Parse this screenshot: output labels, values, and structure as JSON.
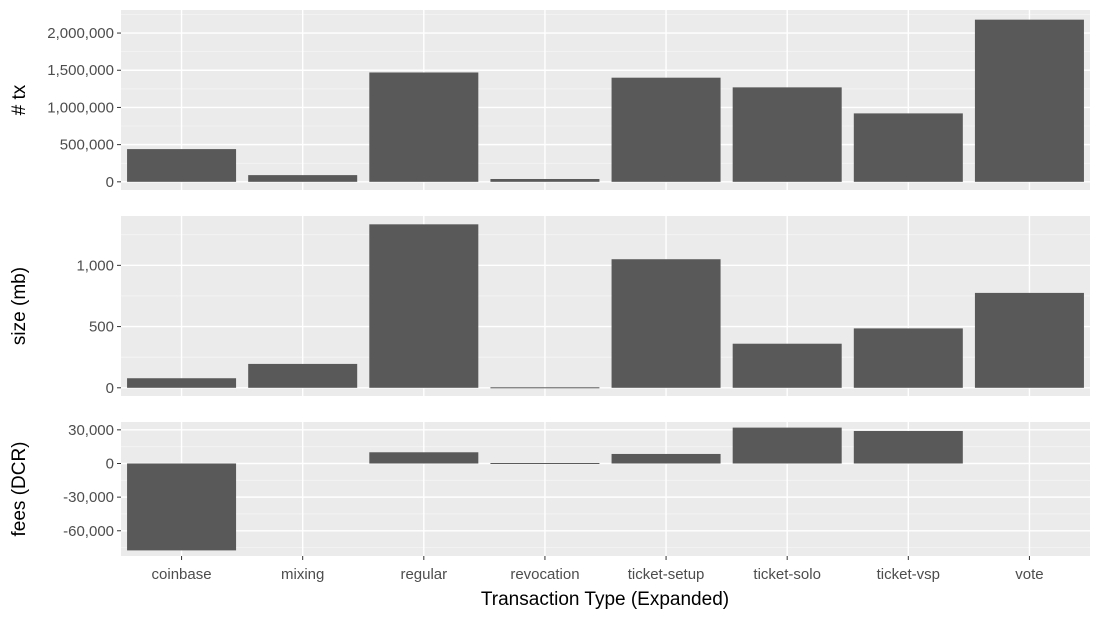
{
  "chart_data": {
    "type": "bar",
    "categories": [
      "coinbase",
      "mixing",
      "regular",
      "revocation",
      "ticket-setup",
      "ticket-solo",
      "ticket-vsp",
      "vote"
    ],
    "xlabel": "Transaction Type (Expanded)",
    "grid": true,
    "panels": [
      {
        "ylabel": "# tx",
        "values": [
          440000,
          90000,
          1470000,
          38000,
          1400000,
          1270000,
          920000,
          2180000
        ],
        "ylim": [
          -110000,
          2310000
        ],
        "yticks": [
          0,
          500000,
          1000000,
          1500000,
          2000000
        ],
        "yticklabels": [
          "0",
          "500,000",
          "1,000,000",
          "1,500,000",
          "2,000,000"
        ]
      },
      {
        "ylabel": "size (mb)",
        "values": [
          78,
          195,
          1335,
          5,
          1050,
          360,
          485,
          775
        ],
        "ylim": [
          -67,
          1403
        ],
        "yticks": [
          0,
          500,
          1000
        ],
        "yticklabels": [
          "0",
          "500",
          "1,000"
        ]
      },
      {
        "ylabel": "fees (DCR)",
        "values": [
          -77500,
          0,
          10000,
          -800,
          8500,
          32000,
          29000,
          0
        ],
        "ylim": [
          -82500,
          37000
        ],
        "yticks": [
          -60000,
          -30000,
          0,
          30000
        ],
        "yticklabels": [
          "-60,000",
          "-30,000",
          "0",
          "30,000"
        ]
      }
    ]
  },
  "colors": {
    "panel_background": "#ebebeb",
    "grid_major": "#ffffff",
    "bar_fill": "#595959",
    "tick_text": "#4d4d4d",
    "title_text": "#000000"
  }
}
